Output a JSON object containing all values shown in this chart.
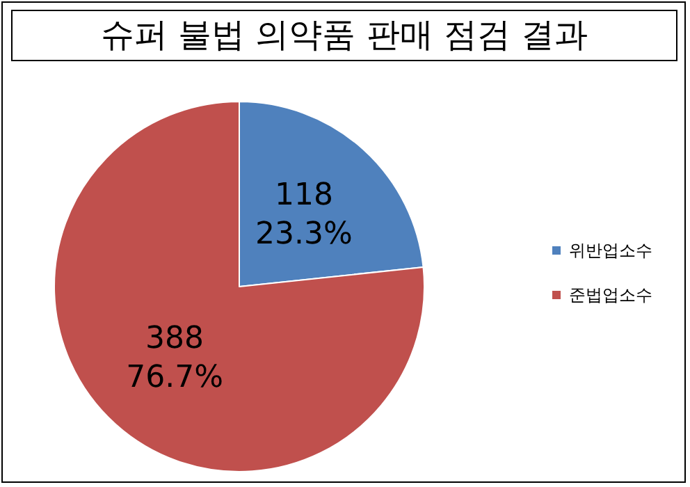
{
  "chart_data": {
    "type": "pie",
    "title": "슈퍼 불법 의약품 판매 점검 결과",
    "categories": [
      "위반업소수",
      "준법업소수"
    ],
    "values": [
      118,
      388
    ],
    "colors": [
      "#4f81bd",
      "#c0504d"
    ],
    "value_labels": [
      "118\n23.3%",
      "388\n76.7%"
    ],
    "legend": "right"
  }
}
